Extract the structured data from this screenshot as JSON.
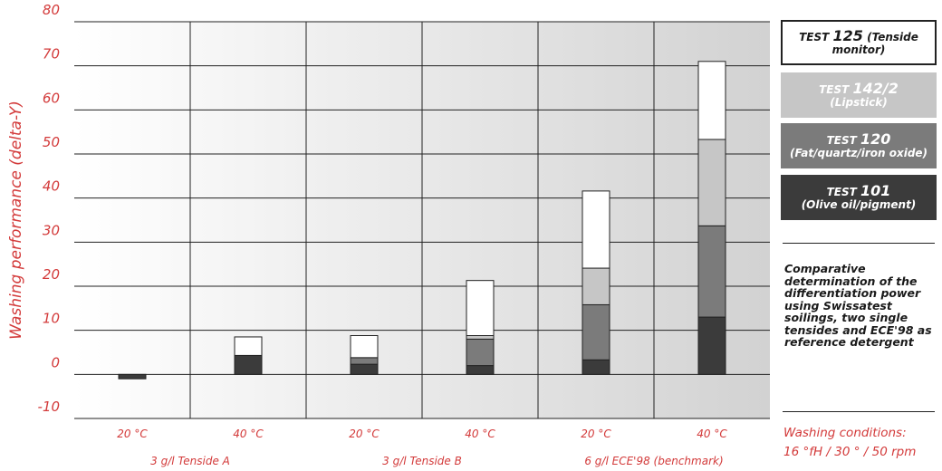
{
  "chart_data": {
    "type": "bar",
    "stacked": true,
    "ylabel": "Washing performance (delta-Y)",
    "ylim": [
      -10,
      80
    ],
    "yticks": [
      80,
      70,
      60,
      50,
      40,
      30,
      20,
      10,
      0,
      -10
    ],
    "categories": [
      "20 °C",
      "40 °C",
      "20 °C",
      "40 °C",
      "20 °C",
      "40 °C"
    ],
    "groups": [
      "3 g/l Tenside A",
      "3 g/l Tenside B",
      "6 g/l ECE'98 (benchmark)"
    ],
    "series": [
      {
        "name": "TEST 101 (Olive oil/pigment)",
        "color": "#3b3b3b",
        "values": [
          -1,
          4.3,
          2.3,
          2.0,
          3.3,
          13.0
        ]
      },
      {
        "name": "TEST 120 (Fat/quartz/iron oxide)",
        "color": "#7b7b7b",
        "values": [
          0,
          0,
          1.5,
          6.0,
          12.5,
          20.7
        ]
      },
      {
        "name": "TEST 142/2 (Lipstick)",
        "color": "#c6c6c6",
        "values": [
          0,
          0,
          0,
          0.8,
          8.3,
          19.6
        ]
      },
      {
        "name": "TEST 125 (Tenside monitor)",
        "color": "#ffffff",
        "values": [
          0,
          4.2,
          5.0,
          12.5,
          17.5,
          17.7
        ]
      }
    ]
  },
  "legend": [
    {
      "test": "TEST",
      "num": "125",
      "desc": "(Tenside monitor)"
    },
    {
      "test": "TEST",
      "num": "142/2",
      "desc": "(Lipstick)"
    },
    {
      "test": "TEST",
      "num": "120",
      "desc": "(Fat/quartz/iron oxide)"
    },
    {
      "test": "TEST",
      "num": "101",
      "desc": "(Olive oil/pigment)"
    }
  ],
  "description": "Comparative determination of the differentiation power using Swissatest soilings, two single tensides and ECE'98 as reference detergent",
  "conditions": [
    "Washing conditions:",
    "16 °fH / 30 ° / 50 rpm"
  ]
}
